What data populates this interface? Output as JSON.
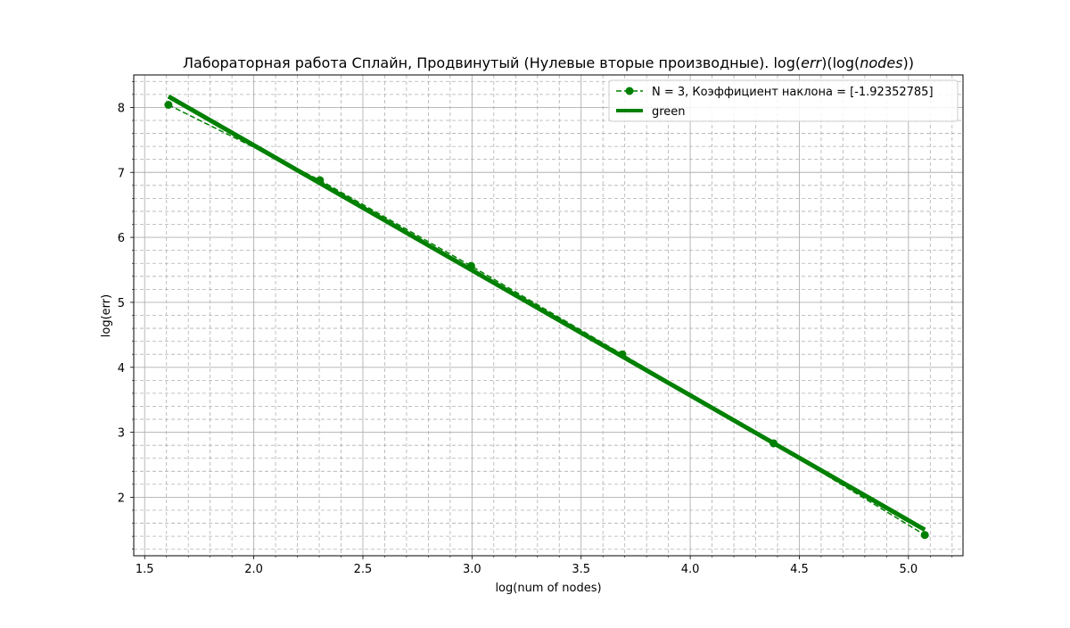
{
  "chart_data": {
    "type": "line",
    "title": "Лабораторная работа Сплайн, Продвинутый (Нулевые вторые производные). log(err)(log(nodes))",
    "title_parts": {
      "prefix": "Лабораторная работа Сплайн, Продвинутый (Нулевые вторые производные). log(",
      "err": "err",
      "middle": ")(log(",
      "nodes": "nodes",
      "suffix": "))"
    },
    "xlabel": "log(num of nodes)",
    "ylabel": "log(err)",
    "xlim": [
      1.45,
      5.25
    ],
    "ylim": [
      1.1,
      8.5
    ],
    "x_ticks": [
      "1.5",
      "2.0",
      "2.5",
      "3.0",
      "3.5",
      "4.0",
      "4.5",
      "5.0"
    ],
    "y_ticks": [
      "2",
      "3",
      "4",
      "5",
      "6",
      "7",
      "8"
    ],
    "grid": {
      "major": true,
      "minor": true,
      "minor_style": "dashed"
    },
    "legend_position": "top-right",
    "series": [
      {
        "name": "N = 3, Коэффициент наклона = [-1.92352785]",
        "style": "dashed-markers",
        "color": "#008000",
        "x": [
          1.609,
          2.303,
          2.996,
          3.689,
          4.382,
          5.075
        ],
        "y": [
          8.04,
          6.88,
          5.56,
          4.2,
          2.83,
          1.42
        ]
      },
      {
        "name": "green",
        "style": "thick-solid",
        "color": "#008000",
        "x": [
          1.609,
          5.075
        ],
        "y": [
          8.17,
          1.5
        ]
      }
    ]
  }
}
